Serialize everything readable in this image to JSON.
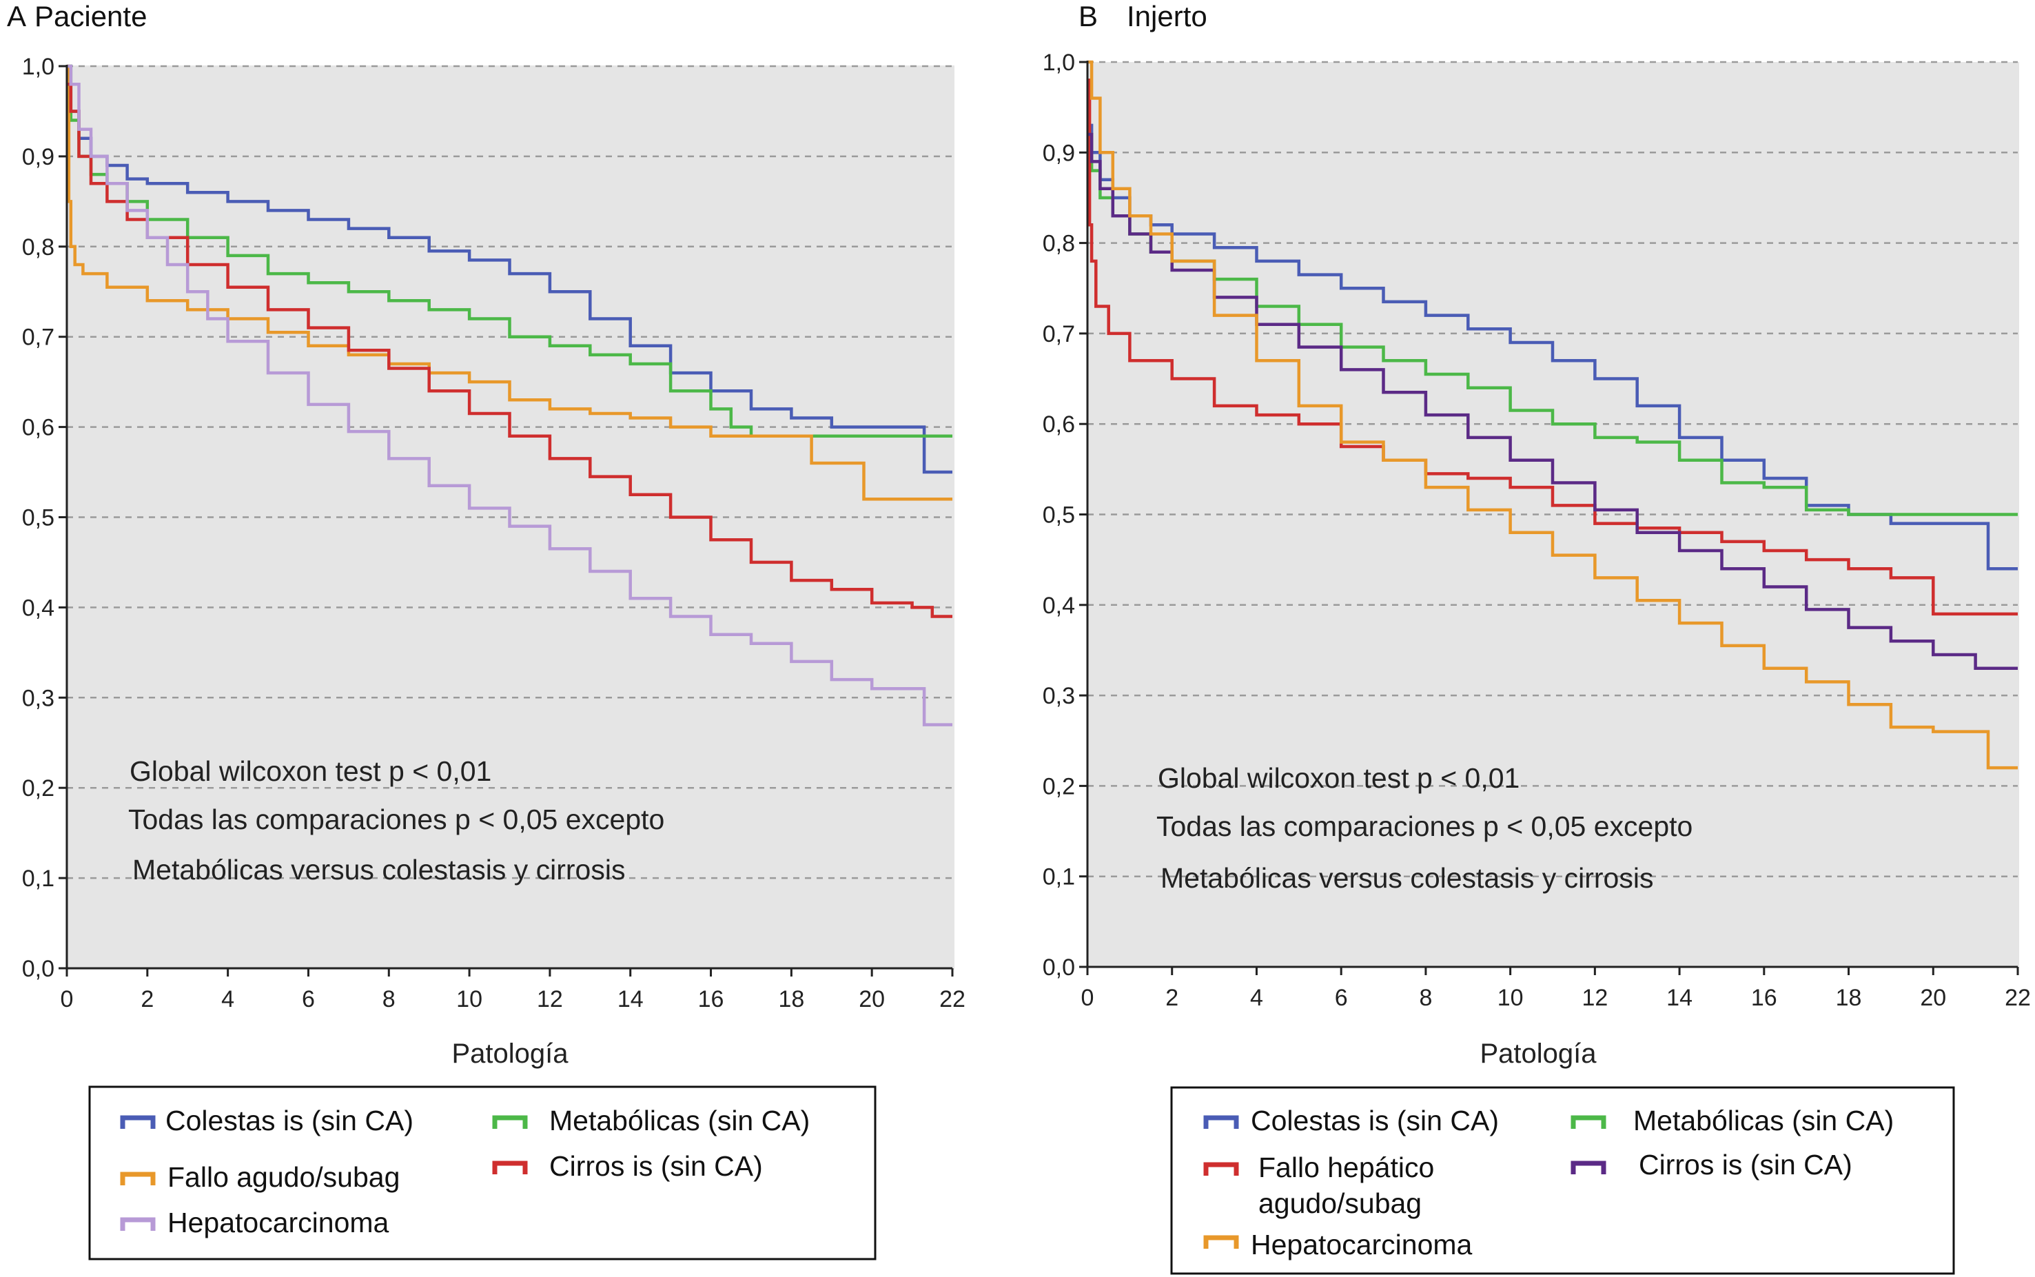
{
  "chart_data": [
    {
      "type": "line",
      "panel_letter": "A",
      "title": "Paciente",
      "xlabel": "Patología",
      "ylabel": "",
      "xlim": [
        0,
        22
      ],
      "ylim": [
        0,
        1
      ],
      "xticks": [
        "0",
        "2",
        "4",
        "6",
        "8",
        "10",
        "12",
        "14",
        "16",
        "18",
        "20",
        "22"
      ],
      "yticks": [
        "0,0",
        "0,1",
        "0,2",
        "0,3",
        "0,4",
        "0,5",
        "0,6",
        "0,7",
        "0,8",
        "0,9",
        "1,0"
      ],
      "grid": "horizontal dashed",
      "annotations": [
        "Global wilcoxon test p < 0,01",
        "Todas las comparaciones p < 0,05 excepto",
        "Metabólicas versus colestasis y cirrosis"
      ],
      "series": [
        {
          "name": "Colestas is (sin CA)",
          "color": "#4a5cb5",
          "x": [
            0,
            0.1,
            0.3,
            0.6,
            1,
            1.5,
            2,
            3,
            4,
            5,
            6,
            7,
            8,
            9,
            10,
            11,
            12,
            13,
            14,
            15,
            16,
            17,
            18,
            18.8,
            19,
            20,
            21,
            21.2,
            21.3,
            22
          ],
          "y": [
            1,
            0.95,
            0.92,
            0.9,
            0.89,
            0.875,
            0.87,
            0.86,
            0.85,
            0.84,
            0.83,
            0.82,
            0.81,
            0.795,
            0.785,
            0.77,
            0.75,
            0.72,
            0.69,
            0.66,
            0.64,
            0.62,
            0.61,
            0.61,
            0.6,
            0.6,
            0.6,
            0.6,
            0.55,
            0.55
          ]
        },
        {
          "name": "Metabólicas (sin CA)",
          "color": "#4cb848",
          "x": [
            0,
            0.1,
            0.3,
            0.6,
            1,
            1.5,
            2,
            3,
            4,
            5,
            6,
            7,
            8,
            9,
            10,
            11,
            12,
            13,
            14,
            15,
            16,
            16.5,
            17,
            18,
            20,
            22
          ],
          "y": [
            1,
            0.94,
            0.9,
            0.88,
            0.87,
            0.85,
            0.83,
            0.81,
            0.79,
            0.77,
            0.76,
            0.75,
            0.74,
            0.73,
            0.72,
            0.7,
            0.69,
            0.68,
            0.67,
            0.64,
            0.62,
            0.6,
            0.59,
            0.59,
            0.59,
            0.59
          ]
        },
        {
          "name": "Fallo agudo/subag",
          "color": "#e8982a",
          "x": [
            0,
            0.05,
            0.1,
            0.2,
            0.4,
            1,
            2,
            3,
            4,
            5,
            6,
            7,
            8,
            9,
            10,
            11,
            12,
            13,
            14,
            15,
            16,
            17,
            18,
            18.5,
            19,
            19.8,
            20,
            21,
            22
          ],
          "y": [
            1,
            0.85,
            0.8,
            0.78,
            0.77,
            0.755,
            0.74,
            0.73,
            0.72,
            0.705,
            0.69,
            0.68,
            0.67,
            0.66,
            0.65,
            0.63,
            0.62,
            0.615,
            0.61,
            0.6,
            0.59,
            0.59,
            0.59,
            0.56,
            0.56,
            0.52,
            0.52,
            0.52,
            0.52
          ]
        },
        {
          "name": "Cirros is (sin CA)",
          "color": "#cf2e2e",
          "x": [
            0,
            0.1,
            0.3,
            0.6,
            1,
            1.5,
            2,
            3,
            4,
            5,
            6,
            7,
            8,
            9,
            10,
            11,
            12,
            13,
            14,
            15,
            16,
            17,
            18,
            19,
            20,
            21,
            21.5,
            22
          ],
          "y": [
            0.98,
            0.95,
            0.9,
            0.87,
            0.85,
            0.83,
            0.81,
            0.78,
            0.755,
            0.73,
            0.71,
            0.685,
            0.665,
            0.64,
            0.615,
            0.59,
            0.565,
            0.545,
            0.525,
            0.5,
            0.475,
            0.45,
            0.43,
            0.42,
            0.405,
            0.4,
            0.39,
            0.39
          ]
        },
        {
          "name": "Hepatocarcinoma",
          "color": "#b79ad6",
          "x": [
            0,
            0.1,
            0.3,
            0.6,
            1,
            1.5,
            2,
            2.5,
            3,
            3.5,
            4,
            5,
            6,
            7,
            8,
            9,
            10,
            11,
            12,
            13,
            14,
            15,
            16,
            17,
            18,
            19,
            20,
            21,
            21.3,
            22
          ],
          "y": [
            1,
            0.98,
            0.93,
            0.9,
            0.87,
            0.84,
            0.81,
            0.78,
            0.75,
            0.72,
            0.695,
            0.66,
            0.625,
            0.595,
            0.565,
            0.535,
            0.51,
            0.49,
            0.465,
            0.44,
            0.41,
            0.39,
            0.37,
            0.36,
            0.34,
            0.32,
            0.31,
            0.31,
            0.27,
            0.27
          ]
        }
      ],
      "legend": {
        "placement": "below",
        "entries": [
          "Colestas is (sin CA)",
          "Metabólicas (sin CA)",
          "Fallo agudo/subag",
          "Cirros is (sin CA)",
          "Hepatocarcinoma"
        ]
      }
    },
    {
      "type": "line",
      "panel_letter": "B",
      "title": "Injerto",
      "xlabel": "Patología",
      "ylabel": "",
      "xlim": [
        0,
        22
      ],
      "ylim": [
        0,
        1
      ],
      "xticks": [
        "0",
        "2",
        "4",
        "6",
        "8",
        "10",
        "12",
        "14",
        "16",
        "18",
        "20",
        "22"
      ],
      "yticks": [
        "0,0",
        "0,1",
        "0,2",
        "0,3",
        "0,4",
        "0,5",
        "0,6",
        "0,7",
        "0,8",
        "0,9",
        "1,0"
      ],
      "grid": "horizontal dashed",
      "annotations": [
        "Global wilcoxon test p < 0,01",
        "Todas las comparaciones p < 0,05 excepto",
        "Metabólicas versus colestasis y cirrosis"
      ],
      "series": [
        {
          "name": "Colestas is (sin CA)",
          "color": "#4a5cb5",
          "x": [
            0,
            0.1,
            0.3,
            0.6,
            1,
            1.5,
            2,
            3,
            4,
            5,
            6,
            7,
            8,
            9,
            10,
            11,
            12,
            13,
            14,
            15,
            16,
            17,
            18,
            19,
            20,
            21,
            21.3,
            22
          ],
          "y": [
            0.93,
            0.9,
            0.87,
            0.85,
            0.83,
            0.82,
            0.81,
            0.795,
            0.78,
            0.765,
            0.75,
            0.735,
            0.72,
            0.705,
            0.69,
            0.67,
            0.65,
            0.62,
            0.585,
            0.56,
            0.54,
            0.51,
            0.5,
            0.49,
            0.49,
            0.49,
            0.44,
            0.44
          ]
        },
        {
          "name": "Metabólicas (sin CA)",
          "color": "#4cb848",
          "x": [
            0,
            0.1,
            0.3,
            0.6,
            1,
            1.5,
            2,
            3,
            4,
            5,
            6,
            7,
            8,
            9,
            10,
            11,
            12,
            13,
            14,
            15,
            16,
            17,
            18,
            20,
            22
          ],
          "y": [
            0.92,
            0.88,
            0.85,
            0.83,
            0.81,
            0.79,
            0.78,
            0.76,
            0.73,
            0.71,
            0.685,
            0.67,
            0.655,
            0.64,
            0.615,
            0.6,
            0.585,
            0.58,
            0.56,
            0.535,
            0.53,
            0.505,
            0.5,
            0.5,
            0.5
          ]
        },
        {
          "name": "Fallo hepático agudo/subag",
          "color": "#cf2e2e",
          "x": [
            0,
            0.05,
            0.1,
            0.2,
            0.5,
            1,
            2,
            3,
            4,
            5,
            6,
            7,
            8,
            9,
            10,
            11,
            12,
            13,
            14,
            15,
            16,
            17,
            18,
            19,
            20,
            21,
            22
          ],
          "y": [
            0.98,
            0.82,
            0.78,
            0.73,
            0.7,
            0.67,
            0.65,
            0.62,
            0.61,
            0.6,
            0.575,
            0.56,
            0.545,
            0.54,
            0.53,
            0.51,
            0.49,
            0.485,
            0.48,
            0.47,
            0.46,
            0.45,
            0.44,
            0.43,
            0.39,
            0.39,
            0.39
          ]
        },
        {
          "name": "Cirros is (sin CA)",
          "color": "#5b2a86",
          "x": [
            0,
            0.1,
            0.3,
            0.6,
            1,
            1.5,
            2,
            3,
            4,
            5,
            6,
            7,
            8,
            9,
            10,
            11,
            12,
            13,
            14,
            15,
            16,
            17,
            18,
            19,
            20,
            21,
            22
          ],
          "y": [
            0.92,
            0.89,
            0.86,
            0.83,
            0.81,
            0.79,
            0.77,
            0.74,
            0.71,
            0.685,
            0.66,
            0.635,
            0.61,
            0.585,
            0.56,
            0.535,
            0.505,
            0.48,
            0.46,
            0.44,
            0.42,
            0.395,
            0.375,
            0.36,
            0.345,
            0.33,
            0.33
          ]
        },
        {
          "name": "Hepatocarcinoma",
          "color": "#e8982a",
          "x": [
            0,
            0.1,
            0.3,
            0.6,
            1,
            1.5,
            2,
            3,
            4,
            5,
            6,
            7,
            8,
            9,
            10,
            11,
            12,
            13,
            14,
            15,
            16,
            17,
            18,
            19,
            20,
            21,
            21.3,
            22
          ],
          "y": [
            1,
            0.96,
            0.9,
            0.86,
            0.83,
            0.81,
            0.78,
            0.72,
            0.67,
            0.62,
            0.58,
            0.56,
            0.53,
            0.505,
            0.48,
            0.455,
            0.43,
            0.405,
            0.38,
            0.355,
            0.33,
            0.315,
            0.29,
            0.265,
            0.26,
            0.26,
            0.22,
            0.22
          ]
        }
      ],
      "legend": {
        "placement": "below",
        "entries": [
          "Colestas is (sin CA)",
          "Metabólicas (sin CA)",
          "Fallo hepático",
          "agudo/subag",
          "Cirros is (sin CA)",
          "Hepatocarcinoma"
        ]
      }
    }
  ]
}
